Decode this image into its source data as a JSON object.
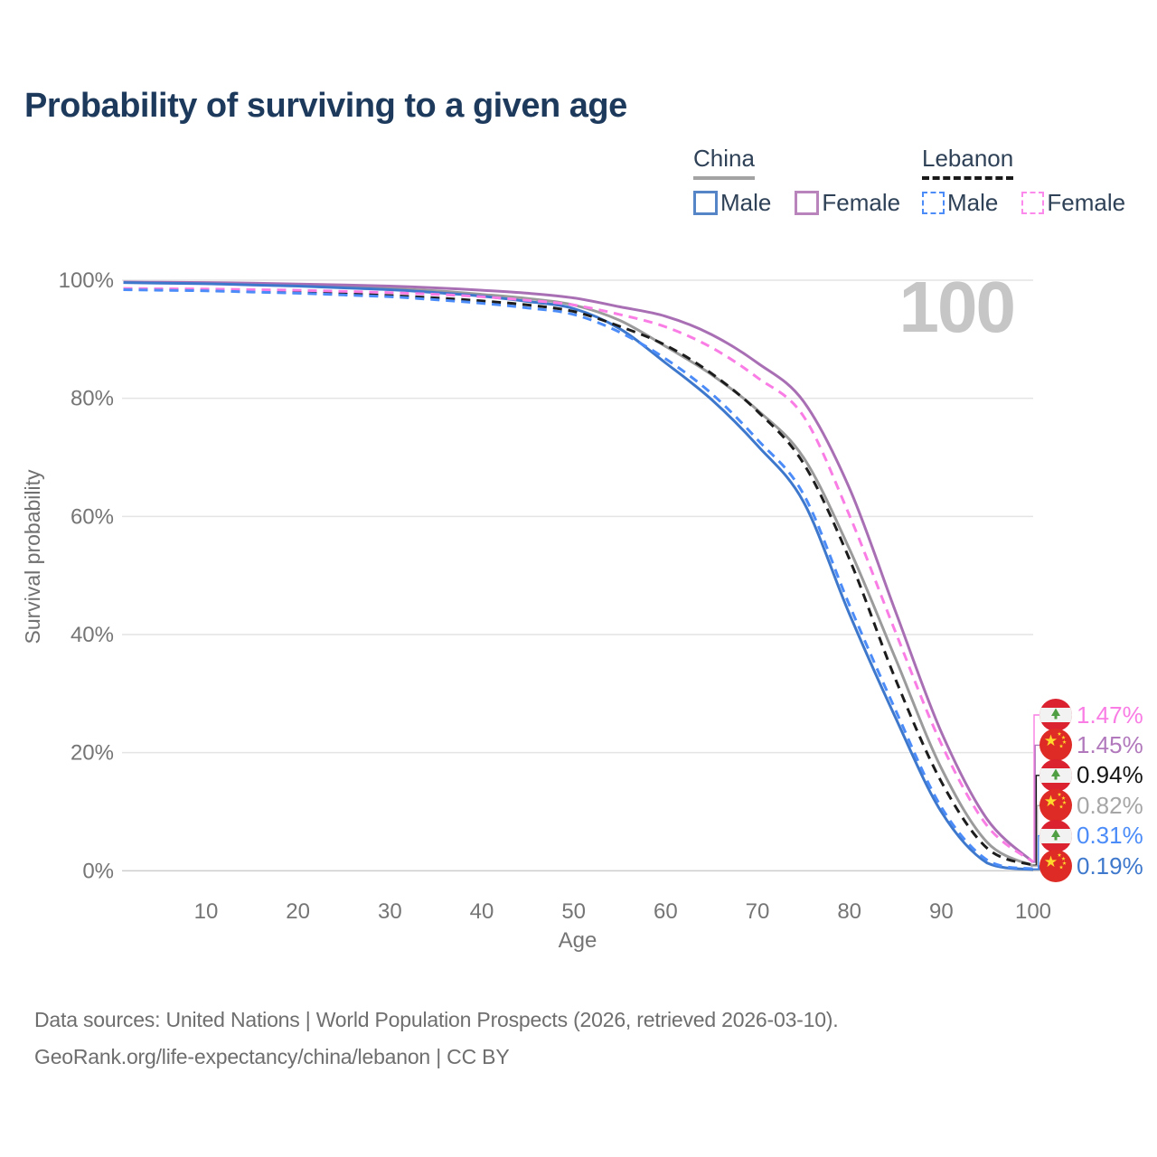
{
  "title": "Probability of surviving to a given age",
  "legend": {
    "groups": [
      {
        "label": "China",
        "line_style": "solid",
        "underline_color": "#a3a3a3",
        "entries": [
          {
            "label": "Male",
            "color": "#5585c6"
          },
          {
            "label": "Female",
            "color": "#b983bc"
          }
        ]
      },
      {
        "label": "Lebanon",
        "line_style": "dashed",
        "underline_color": "#1a1a1a",
        "entries": [
          {
            "label": "Male",
            "color": "#4c8cf8"
          },
          {
            "label": "Female",
            "color": "#fc8aec"
          }
        ]
      }
    ]
  },
  "chart_data": {
    "type": "line",
    "title": "Probability of surviving to a given age",
    "xlabel": "Age",
    "ylabel": "Survival probability",
    "xlim": [
      0,
      100
    ],
    "ylim": [
      0,
      100
    ],
    "x_ticks": [
      10,
      20,
      30,
      40,
      50,
      60,
      70,
      80,
      90,
      100
    ],
    "y_ticks": [
      0,
      20,
      40,
      60,
      80,
      100
    ],
    "y_tick_labels": [
      "0%",
      "20%",
      "40%",
      "60%",
      "80%",
      "100%"
    ],
    "grid": "horizontal",
    "legend_position": "top-right",
    "hover_age_indicator": "100",
    "ages": [
      1,
      5,
      10,
      15,
      20,
      25,
      30,
      35,
      40,
      45,
      50,
      55,
      60,
      65,
      70,
      75,
      80,
      85,
      90,
      95,
      100
    ],
    "series": [
      {
        "name": "China Total",
        "country": "China",
        "group": "Total",
        "color": "#9b9b9b",
        "dash": false,
        "values": [
          99.65,
          99.55,
          99.45,
          99.3,
          99.1,
          98.9,
          98.6,
          98.2,
          97.6,
          96.9,
          95.8,
          93.2,
          88.8,
          84.0,
          78.0,
          70.0,
          54.5,
          36.0,
          17.4,
          4.8,
          0.82
        ]
      },
      {
        "name": "China Female",
        "country": "China",
        "group": "Female",
        "color": "#a96fb4",
        "dash": false,
        "values": [
          99.7,
          99.65,
          99.6,
          99.5,
          99.35,
          99.2,
          99.0,
          98.7,
          98.3,
          97.8,
          97.0,
          95.5,
          93.9,
          90.8,
          86.0,
          79.5,
          64.8,
          44.0,
          23.5,
          8.7,
          1.45
        ]
      },
      {
        "name": "China Male",
        "country": "China",
        "group": "Male",
        "color": "#3e78cc",
        "dash": false,
        "values": [
          99.6,
          99.5,
          99.4,
          99.2,
          99.0,
          98.7,
          98.4,
          97.9,
          97.3,
          96.4,
          95.2,
          91.8,
          86.0,
          79.8,
          72.0,
          62.5,
          43.5,
          26.0,
          10.0,
          1.3,
          0.19
        ]
      },
      {
        "name": "Lebanon Total",
        "country": "Lebanon",
        "group": "Total",
        "color": "#1c1c1c",
        "dash": true,
        "values": [
          98.5,
          98.4,
          98.3,
          98.1,
          97.9,
          97.7,
          97.4,
          97.0,
          96.5,
          95.8,
          94.7,
          92.2,
          89.0,
          84.2,
          77.8,
          69.0,
          52.8,
          32.5,
          15.1,
          3.8,
          0.94
        ]
      },
      {
        "name": "Lebanon Female",
        "country": "Lebanon",
        "group": "Female",
        "color": "#f97de4",
        "dash": true,
        "values": [
          98.6,
          98.55,
          98.5,
          98.4,
          98.3,
          98.1,
          97.9,
          97.6,
          97.2,
          96.6,
          95.8,
          94.2,
          92.1,
          88.6,
          83.5,
          77.0,
          60.2,
          40.5,
          21.5,
          7.6,
          1.47
        ]
      },
      {
        "name": "Lebanon Male",
        "country": "Lebanon",
        "group": "Male",
        "color": "#4c8cf8",
        "dash": true,
        "values": [
          98.4,
          98.3,
          98.2,
          98.0,
          97.8,
          97.5,
          97.2,
          96.7,
          96.1,
          95.3,
          94.2,
          91.2,
          86.7,
          80.8,
          73.0,
          63.8,
          45.0,
          27.3,
          10.8,
          1.8,
          0.31
        ]
      }
    ],
    "end_labels": [
      {
        "text": "1.47%",
        "value": 1.47,
        "series": "Lebanon Female",
        "flag": "lebanon",
        "color": "#f97de4"
      },
      {
        "text": "1.45%",
        "value": 1.45,
        "series": "China Female",
        "flag": "china",
        "color": "#b178bc"
      },
      {
        "text": "0.94%",
        "value": 0.94,
        "series": "Lebanon Total",
        "flag": "lebanon",
        "color": "#141414"
      },
      {
        "text": "0.82%",
        "value": 0.82,
        "series": "China Total",
        "flag": "china",
        "color": "#a6a6a6"
      },
      {
        "text": "0.31%",
        "value": 0.31,
        "series": "Lebanon Male",
        "flag": "lebanon",
        "color": "#4c8cf8"
      },
      {
        "text": "0.19%",
        "value": 0.19,
        "series": "China Male",
        "flag": "china",
        "color": "#3e78cc"
      }
    ]
  },
  "footer": {
    "line1": "Data sources: United Nations | World Population Prospects (2026, retrieved 2026-03-10).",
    "line2": "GeoRank.org/life-expectancy/china/lebanon | CC BY"
  }
}
